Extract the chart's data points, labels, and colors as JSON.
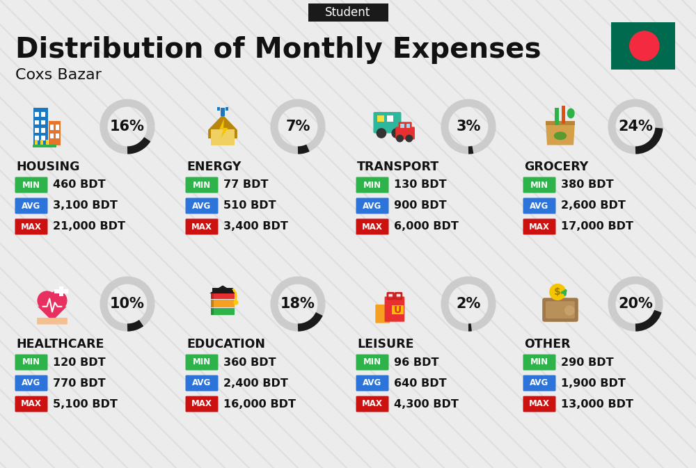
{
  "title": "Distribution of Monthly Expenses",
  "subtitle": "Student",
  "location": "Coxs Bazar",
  "bg_color": "#ececec",
  "categories": [
    {
      "name": "HOUSING",
      "percent": 16,
      "min": "460 BDT",
      "avg": "3,100 BDT",
      "max": "21,000 BDT",
      "row": 0,
      "col": 0
    },
    {
      "name": "ENERGY",
      "percent": 7,
      "min": "77 BDT",
      "avg": "510 BDT",
      "max": "3,400 BDT",
      "row": 0,
      "col": 1
    },
    {
      "name": "TRANSPORT",
      "percent": 3,
      "min": "130 BDT",
      "avg": "900 BDT",
      "max": "6,000 BDT",
      "row": 0,
      "col": 2
    },
    {
      "name": "GROCERY",
      "percent": 24,
      "min": "380 BDT",
      "avg": "2,600 BDT",
      "max": "17,000 BDT",
      "row": 0,
      "col": 3
    },
    {
      "name": "HEALTHCARE",
      "percent": 10,
      "min": "120 BDT",
      "avg": "770 BDT",
      "max": "5,100 BDT",
      "row": 1,
      "col": 0
    },
    {
      "name": "EDUCATION",
      "percent": 18,
      "min": "360 BDT",
      "avg": "2,400 BDT",
      "max": "16,000 BDT",
      "row": 1,
      "col": 1
    },
    {
      "name": "LEISURE",
      "percent": 2,
      "min": "96 BDT",
      "avg": "640 BDT",
      "max": "4,300 BDT",
      "row": 1,
      "col": 2
    },
    {
      "name": "OTHER",
      "percent": 20,
      "min": "290 BDT",
      "avg": "1,900 BDT",
      "max": "13,000 BDT",
      "row": 1,
      "col": 3
    }
  ],
  "min_color": "#2db34a",
  "avg_color": "#2d74da",
  "max_color": "#cc1111",
  "label_text_color": "#ffffff",
  "title_color": "#111111",
  "subtitle_bg": "#1a1a1a",
  "subtitle_text": "#ffffff",
  "donut_bg_color": "#cccccc",
  "donut_fg_color": "#1a1a1a",
  "stripe_color": "#d5d5d5",
  "flag_green": "#006a4e",
  "flag_red": "#f42a41"
}
